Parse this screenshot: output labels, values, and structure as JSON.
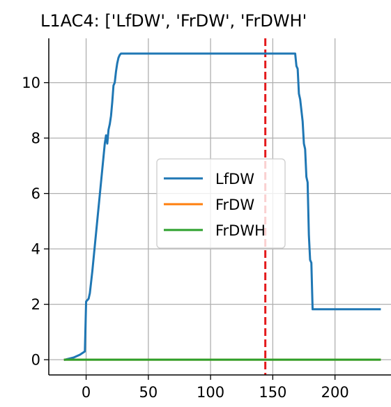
{
  "chart_data": {
    "type": "line",
    "title": "L1AC4: ['LfDW', 'FrDW', 'FrDWH'",
    "xlabel": "",
    "ylabel": "",
    "xlim": [
      -30,
      245
    ],
    "ylim": [
      -0.55,
      11.6
    ],
    "xticks": [
      0,
      50,
      100,
      150,
      200
    ],
    "yticks": [
      0,
      2,
      4,
      6,
      8,
      10
    ],
    "grid": true,
    "legend_position": "center",
    "vline": {
      "x": 144,
      "color": "#e41a1c",
      "style": "dashed"
    },
    "series": [
      {
        "name": "LfDW",
        "color": "#1f77b4",
        "x": [
          -17,
          -10,
          -5,
          -1,
          0,
          2,
          3,
          4,
          5,
          10,
          15,
          16,
          17,
          18,
          19,
          20,
          21,
          22,
          23,
          24,
          25,
          26,
          27,
          28,
          29,
          30,
          40,
          60,
          100,
          140,
          168,
          169,
          170,
          171,
          172,
          173,
          174,
          175,
          176,
          177,
          178,
          179,
          180,
          181,
          182,
          190,
          200,
          236
        ],
        "y": [
          0,
          0.08,
          0.18,
          0.3,
          2.1,
          2.2,
          2.4,
          2.8,
          3.2,
          5.5,
          7.8,
          8.1,
          7.8,
          8.3,
          8.5,
          8.8,
          9.3,
          9.9,
          10.0,
          10.4,
          10.7,
          10.9,
          11.0,
          11.05,
          11.05,
          11.05,
          11.05,
          11.05,
          11.05,
          11.05,
          11.05,
          10.6,
          10.5,
          9.6,
          9.4,
          9.0,
          8.6,
          7.8,
          7.6,
          6.6,
          6.4,
          4.5,
          3.6,
          3.5,
          1.82,
          1.82,
          1.82,
          1.82
        ]
      },
      {
        "name": "FrDW",
        "color": "#ff7f0e",
        "x": [
          -17,
          236
        ],
        "y": [
          0,
          0
        ]
      },
      {
        "name": "FrDWH",
        "color": "#2ca02c",
        "x": [
          -17,
          236
        ],
        "y": [
          0,
          0
        ]
      }
    ]
  }
}
